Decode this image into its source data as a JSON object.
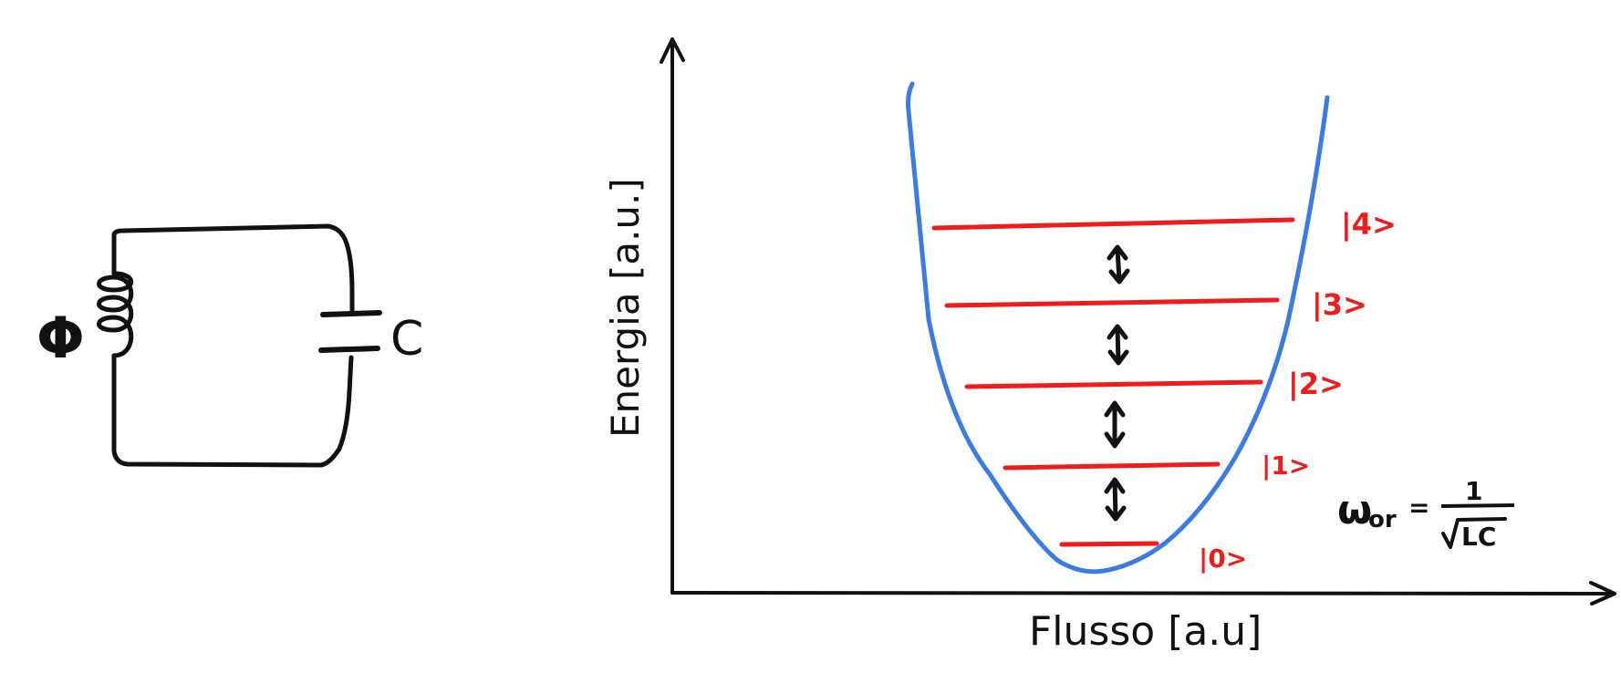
{
  "circuit": {
    "inductor_label": "Φ",
    "capacitor_label": "C"
  },
  "plot": {
    "x_axis_label": "Flusso [a.u]",
    "y_axis_label": "Energia [a.u.]",
    "levels": [
      {
        "label": "|0>"
      },
      {
        "label": "|1>"
      },
      {
        "label": "|2>"
      },
      {
        "label": "|3>"
      },
      {
        "label": "|4>"
      }
    ],
    "formula": {
      "lhs": "ω",
      "subscript": "or",
      "equals": "=",
      "numerator": "1",
      "denominator": "LC"
    }
  },
  "colors": {
    "ink": "#111111",
    "potential": "#3b7be6",
    "levels": "#ee1c1c"
  }
}
